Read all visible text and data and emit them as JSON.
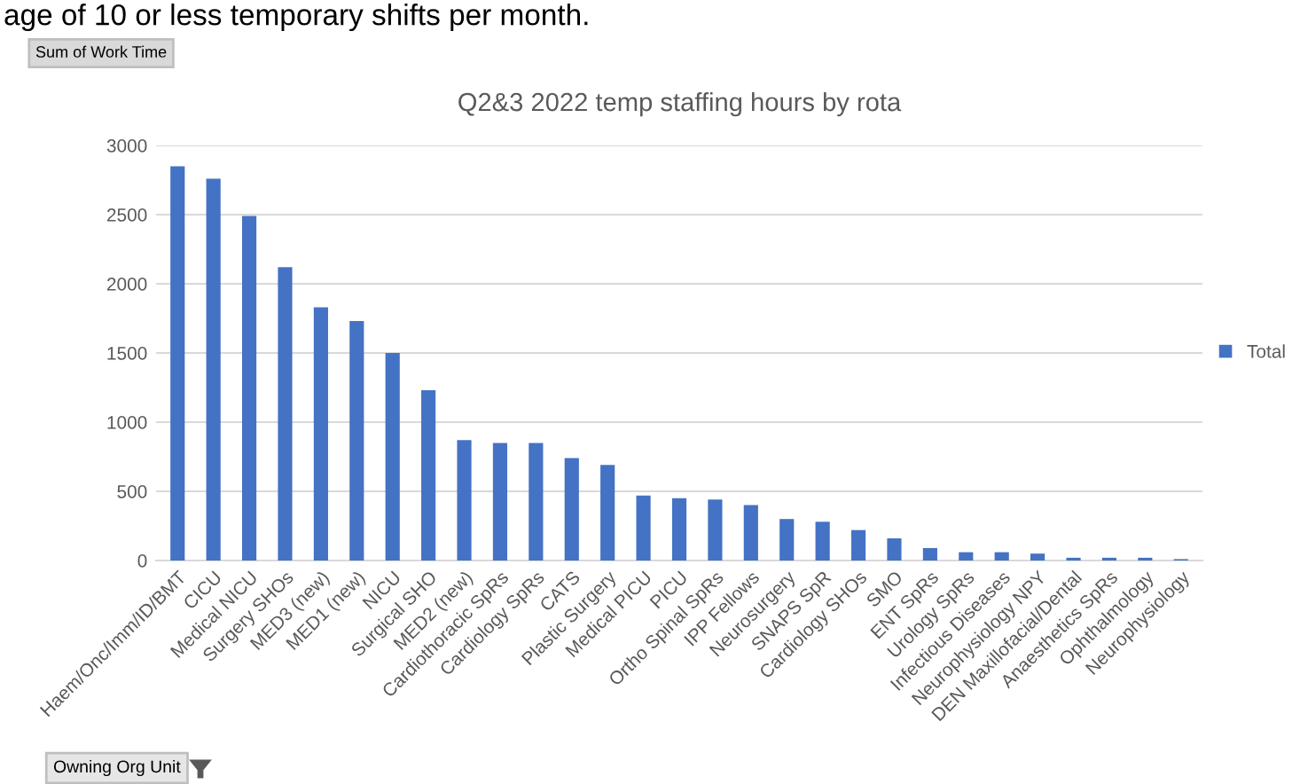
{
  "chart_data": {
    "type": "bar",
    "title": "Q2&3 2022 temp staffing hours by rota",
    "categories": [
      "Haem/Onc/Imm/ID/BMT",
      "CICU",
      "Medical NICU",
      "Surgery SHOs",
      "MED3 (new)",
      "MED1 (new)",
      "NICU",
      "Surgical SHO",
      "MED2 (new)",
      "Cardiothoracic SpRs",
      "Cardiology SpRs",
      "CATS",
      "Plastic Surgery",
      "Medical PICU",
      "PICU",
      "Ortho Spinal SpRs",
      "IPP Fellows",
      "Neurosurgery",
      "SNAPS SpR",
      "Cardiology SHOs",
      "SMO",
      "ENT SpRs",
      "Urology SpRs",
      "Infectious Diseases",
      "Neurophysiology NPY",
      "DEN Maxillofacial/Dental",
      "Anaesthetics SpRs",
      "Ophthalmology",
      "Neurophysiology"
    ],
    "series": [
      {
        "name": "Total",
        "color": "#4472c4",
        "values": [
          2850,
          2760,
          2490,
          2120,
          1830,
          1730,
          1500,
          1230,
          870,
          850,
          850,
          740,
          690,
          470,
          450,
          440,
          400,
          300,
          280,
          220,
          160,
          90,
          60,
          60,
          50,
          20,
          20,
          20,
          10
        ]
      }
    ],
    "ylim": [
      0,
      3000
    ],
    "yticks": [
      0,
      500,
      1000,
      1500,
      2000,
      2500,
      3000
    ],
    "grid": "y",
    "legend": "right",
    "annotations": [
      "age of 10 or less temporary shifts per month.",
      "Sum of Work Time",
      "Owning Org Unit"
    ]
  }
}
